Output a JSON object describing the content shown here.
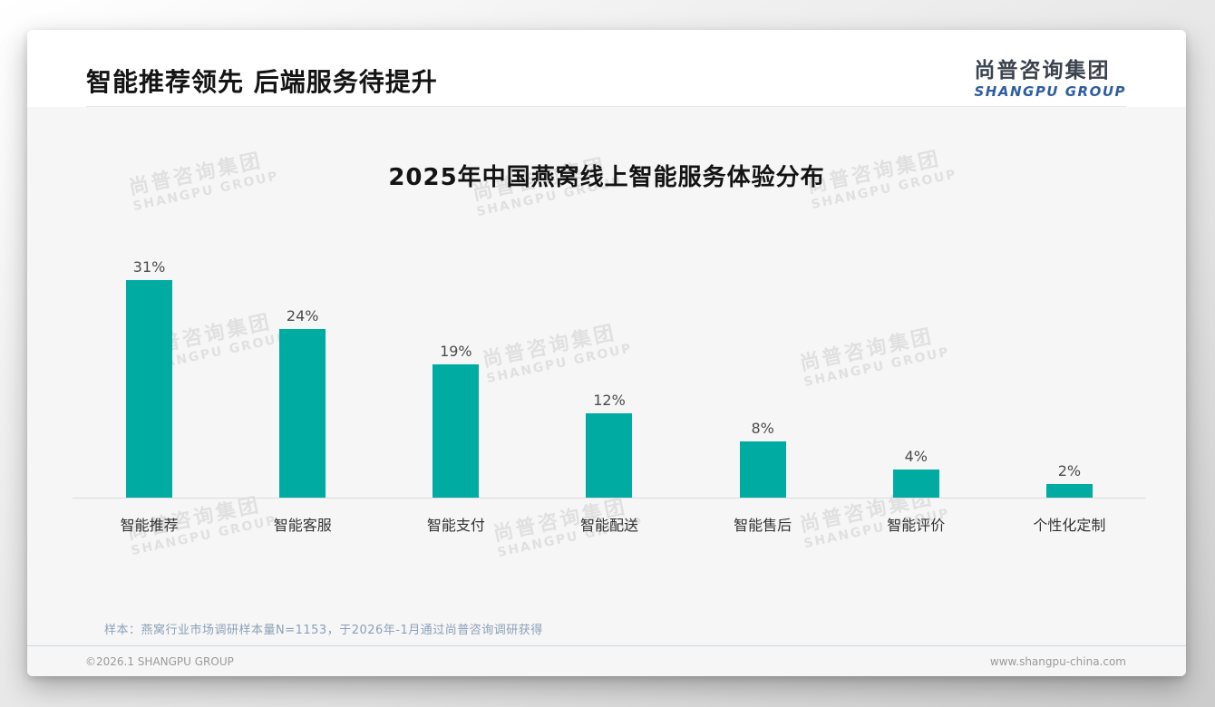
{
  "header": {
    "title": "智能推荐领先 后端服务待提升",
    "logo_cn": "尚普咨询集团",
    "logo_en": "SHANGPU GROUP"
  },
  "chart_data": {
    "type": "bar",
    "title": "2025年中国燕窝线上智能服务体验分布",
    "categories": [
      "智能推荐",
      "智能客服",
      "智能支付",
      "智能配送",
      "智能售后",
      "智能评价",
      "个性化定制"
    ],
    "values": [
      31,
      24,
      19,
      12,
      8,
      4,
      2
    ],
    "value_labels": [
      "31%",
      "24%",
      "19%",
      "12%",
      "8%",
      "4%",
      "2%"
    ],
    "unit": "%",
    "bar_color": "#00aba2",
    "ylim": [
      0,
      31
    ],
    "grid": false,
    "legend": "none",
    "xlabel": "",
    "ylabel": ""
  },
  "watermark": {
    "line1": "尚普咨询集团",
    "line2": "SHANGPU GROUP"
  },
  "note": "样本：燕窝行业市场调研样本量N=1153，于2026年-1月通过尚普咨询调研获得",
  "footer": {
    "left": "©2026.1 SHANGPU GROUP",
    "right": "www.shangpu-china.com"
  },
  "colors": {
    "bar": "#00aba2",
    "logo_blue": "#2e5e9e",
    "note_text": "#8ba0b6"
  }
}
